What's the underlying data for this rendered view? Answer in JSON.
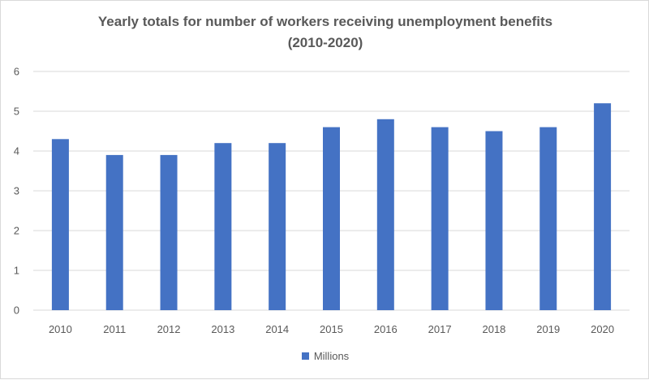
{
  "chart_data": {
    "type": "bar",
    "title_lines": [
      "Yearly totals for number of workers receiving unemployment benefits",
      "(2010-2020)"
    ],
    "xlabel": "",
    "ylabel": "",
    "categories": [
      "2010",
      "2011",
      "2012",
      "2013",
      "2014",
      "2015",
      "2016",
      "2017",
      "2018",
      "2019",
      "2020"
    ],
    "series": [
      {
        "name": "Millions",
        "values": [
          4.3,
          3.9,
          3.9,
          4.2,
          4.2,
          4.6,
          4.8,
          4.6,
          4.5,
          4.6,
          5.2
        ]
      }
    ],
    "ylim": [
      0,
      6
    ],
    "yticks": [
      "0",
      "1",
      "2",
      "3",
      "4",
      "5",
      "6"
    ],
    "grid": true,
    "legend_position": "bottom",
    "colors": {
      "bar": "#4472C4",
      "grid": "#d9d9d9",
      "text": "#595959"
    }
  }
}
